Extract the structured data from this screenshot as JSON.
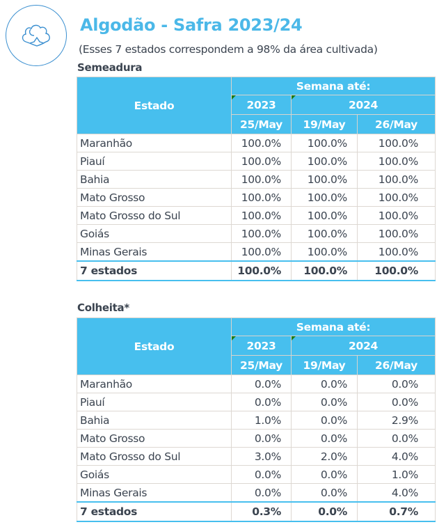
{
  "title": "Algodão - Safra 2023/24",
  "subtitle": "(Esses 7 estados correspondem a 98% da área cultivada)",
  "header": {
    "estado": "Estado",
    "semana": "Semana até:",
    "y2023": "2023",
    "y2024": "2024",
    "d1": "25/May",
    "d2": "19/May",
    "d3": "26/May"
  },
  "tables": [
    {
      "name": "Semeadura",
      "rows": [
        [
          "Maranhão",
          "100.0%",
          "100.0%",
          "100.0%"
        ],
        [
          "Piauí",
          "100.0%",
          "100.0%",
          "100.0%"
        ],
        [
          "Bahia",
          "100.0%",
          "100.0%",
          "100.0%"
        ],
        [
          "Mato Grosso",
          "100.0%",
          "100.0%",
          "100.0%"
        ],
        [
          "Mato Grosso do Sul",
          "100.0%",
          "100.0%",
          "100.0%"
        ],
        [
          "Goiás",
          "100.0%",
          "100.0%",
          "100.0%"
        ],
        [
          "Minas Gerais",
          "100.0%",
          "100.0%",
          "100.0%"
        ]
      ],
      "total": [
        "7 estados",
        "100.0%",
        "100.0%",
        "100.0%"
      ]
    },
    {
      "name": "Colheita*",
      "rows": [
        [
          "Maranhão",
          "0.0%",
          "0.0%",
          "0.0%"
        ],
        [
          "Piauí",
          "0.0%",
          "0.0%",
          "0.0%"
        ],
        [
          "Bahia",
          "1.0%",
          "0.0%",
          "2.9%"
        ],
        [
          "Mato Grosso",
          "0.0%",
          "0.0%",
          "0.0%"
        ],
        [
          "Mato Grosso do Sul",
          "3.0%",
          "2.0%",
          "4.0%"
        ],
        [
          "Goiás",
          "0.0%",
          "0.0%",
          "1.0%"
        ],
        [
          "Minas Gerais",
          "0.0%",
          "0.0%",
          "4.0%"
        ]
      ],
      "total": [
        "7 estados",
        "0.3%",
        "0.0%",
        "0.7%"
      ]
    }
  ]
}
